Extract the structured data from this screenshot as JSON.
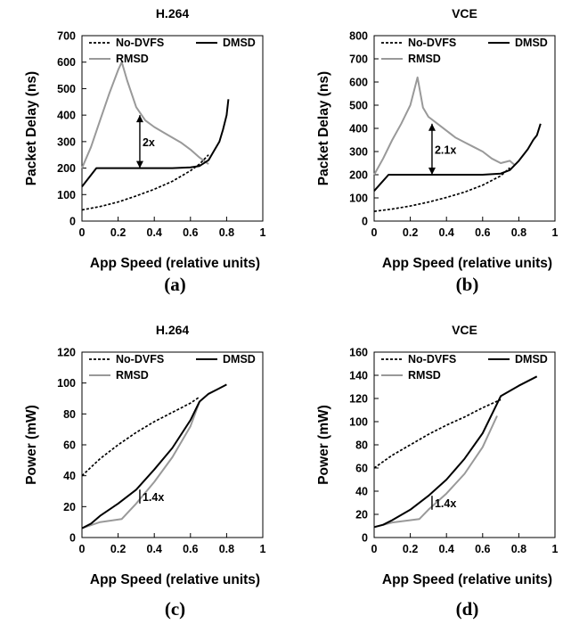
{
  "chart_data": [
    {
      "type": "line",
      "caption": "(a)",
      "title": "H.264",
      "xlabel": "App Speed (relative units)",
      "ylabel": "Packet Delay (ns)",
      "xlim": [
        0,
        1
      ],
      "ylim": [
        0,
        700
      ],
      "xticks": [
        "0",
        "0.2",
        "0.4",
        "0.6",
        "0.8",
        "1"
      ],
      "yticks": [
        "0",
        "100",
        "200",
        "300",
        "400",
        "500",
        "600",
        "700"
      ],
      "legend_position": "top",
      "series": [
        {
          "name": "No-DVFS",
          "color": "#000000",
          "style": "dashed",
          "x": [
            0,
            0.1,
            0.2,
            0.3,
            0.4,
            0.5,
            0.6,
            0.65,
            0.7
          ],
          "y": [
            42,
            55,
            72,
            95,
            120,
            150,
            190,
            215,
            250
          ]
        },
        {
          "name": "DMSD",
          "color": "#000000",
          "style": "solid",
          "x": [
            0,
            0.04,
            0.08,
            0.2,
            0.3,
            0.4,
            0.5,
            0.6,
            0.65,
            0.7,
            0.73,
            0.76,
            0.78,
            0.8,
            0.81
          ],
          "y": [
            130,
            165,
            200,
            200,
            200,
            200,
            200,
            203,
            208,
            230,
            265,
            300,
            345,
            400,
            460
          ]
        },
        {
          "name": "RMSD",
          "color": "#999999",
          "style": "solid",
          "x": [
            0,
            0.05,
            0.1,
            0.15,
            0.2,
            0.22,
            0.25,
            0.3,
            0.35,
            0.4,
            0.45,
            0.5,
            0.55,
            0.6,
            0.65,
            0.7
          ],
          "y": [
            200,
            280,
            380,
            480,
            570,
            600,
            530,
            430,
            380,
            355,
            335,
            315,
            295,
            270,
            240,
            215
          ]
        }
      ],
      "annotations": [
        {
          "text": "2x",
          "x": 0.32,
          "y_from": 200,
          "y_to": 400
        }
      ]
    },
    {
      "type": "line",
      "caption": "(b)",
      "title": "VCE",
      "xlabel": "App Speed (relative units)",
      "ylabel": "Packet Delay (ns)",
      "xlim": [
        0,
        1
      ],
      "ylim": [
        0,
        800
      ],
      "xticks": [
        "0",
        "0.2",
        "0.4",
        "0.6",
        "0.8",
        "1"
      ],
      "yticks": [
        "0",
        "100",
        "200",
        "300",
        "400",
        "500",
        "600",
        "700",
        "800"
      ],
      "legend_position": "top",
      "series": [
        {
          "name": "No-DVFS",
          "color": "#000000",
          "style": "dashed",
          "x": [
            0,
            0.1,
            0.2,
            0.3,
            0.4,
            0.5,
            0.6,
            0.7,
            0.75
          ],
          "y": [
            42,
            52,
            65,
            82,
            102,
            125,
            155,
            195,
            230
          ]
        },
        {
          "name": "DMSD",
          "color": "#000000",
          "style": "solid",
          "x": [
            0,
            0.04,
            0.08,
            0.2,
            0.3,
            0.4,
            0.5,
            0.6,
            0.7,
            0.75,
            0.8,
            0.85,
            0.88,
            0.9,
            0.92
          ],
          "y": [
            130,
            165,
            200,
            200,
            200,
            200,
            200,
            200,
            205,
            220,
            260,
            310,
            350,
            370,
            420
          ]
        },
        {
          "name": "RMSD",
          "color": "#999999",
          "style": "solid",
          "x": [
            0,
            0.05,
            0.1,
            0.15,
            0.2,
            0.24,
            0.27,
            0.3,
            0.35,
            0.4,
            0.45,
            0.5,
            0.55,
            0.6,
            0.65,
            0.7,
            0.75,
            0.78
          ],
          "y": [
            200,
            270,
            350,
            420,
            500,
            620,
            490,
            450,
            420,
            390,
            360,
            340,
            320,
            300,
            270,
            250,
            260,
            240
          ]
        }
      ],
      "annotations": [
        {
          "text": "2.1x",
          "x": 0.32,
          "y_from": 200,
          "y_to": 420
        }
      ]
    },
    {
      "type": "line",
      "caption": "(c)",
      "title": "H.264",
      "xlabel": "App Speed (relative units)",
      "ylabel": "Power (mW)",
      "xlim": [
        0,
        1
      ],
      "ylim": [
        0,
        120
      ],
      "xticks": [
        "0",
        "0.2",
        "0.4",
        "0.6",
        "0.8",
        "1"
      ],
      "yticks": [
        "0",
        "20",
        "40",
        "60",
        "80",
        "100",
        "120"
      ],
      "legend_position": "top",
      "series": [
        {
          "name": "No-DVFS",
          "color": "#000000",
          "style": "dashed",
          "x": [
            0,
            0.1,
            0.2,
            0.3,
            0.4,
            0.5,
            0.6,
            0.65
          ],
          "y": [
            40,
            51,
            60,
            68,
            75,
            81,
            87,
            91
          ]
        },
        {
          "name": "DMSD",
          "color": "#000000",
          "style": "solid",
          "x": [
            0,
            0.05,
            0.1,
            0.2,
            0.3,
            0.4,
            0.5,
            0.6,
            0.65,
            0.7,
            0.75,
            0.8
          ],
          "y": [
            6,
            9,
            14,
            22,
            31,
            44,
            58,
            76,
            88,
            93,
            96,
            99
          ]
        },
        {
          "name": "RMSD",
          "color": "#999999",
          "style": "solid",
          "x": [
            0,
            0.1,
            0.22,
            0.3,
            0.4,
            0.5,
            0.6,
            0.65
          ],
          "y": [
            6,
            10,
            12,
            22,
            36,
            52,
            72,
            88
          ]
        }
      ],
      "annotations": [
        {
          "text": "1.4x",
          "x": 0.32,
          "y_from": 22,
          "y_to": 31
        }
      ]
    },
    {
      "type": "line",
      "caption": "(d)",
      "title": "VCE",
      "xlabel": "App Speed (relative units)",
      "ylabel": "Power (mW)",
      "xlim": [
        0,
        1
      ],
      "ylim": [
        0,
        160
      ],
      "xticks": [
        "0",
        "0.2",
        "0.4",
        "0.6",
        "0.8",
        "1"
      ],
      "yticks": [
        "0",
        "20",
        "40",
        "60",
        "80",
        "100",
        "120",
        "140",
        "160"
      ],
      "legend_position": "top",
      "series": [
        {
          "name": "No-DVFS",
          "color": "#000000",
          "style": "dashed",
          "x": [
            0,
            0.1,
            0.2,
            0.3,
            0.4,
            0.5,
            0.6,
            0.7
          ],
          "y": [
            60,
            71,
            80,
            89,
            97,
            104,
            112,
            119
          ]
        },
        {
          "name": "DMSD",
          "color": "#000000",
          "style": "solid",
          "x": [
            0,
            0.05,
            0.1,
            0.2,
            0.3,
            0.4,
            0.5,
            0.6,
            0.7,
            0.8,
            0.9
          ],
          "y": [
            9,
            11,
            15,
            24,
            36,
            50,
            68,
            90,
            122,
            131,
            139
          ]
        },
        {
          "name": "RMSD",
          "color": "#999999",
          "style": "solid",
          "x": [
            0,
            0.1,
            0.25,
            0.3,
            0.4,
            0.5,
            0.6,
            0.68
          ],
          "y": [
            9,
            13,
            16,
            24,
            38,
            55,
            78,
            105
          ]
        }
      ],
      "annotations": [
        {
          "text": "1.4x",
          "x": 0.32,
          "y_from": 24,
          "y_to": 36
        }
      ]
    }
  ]
}
